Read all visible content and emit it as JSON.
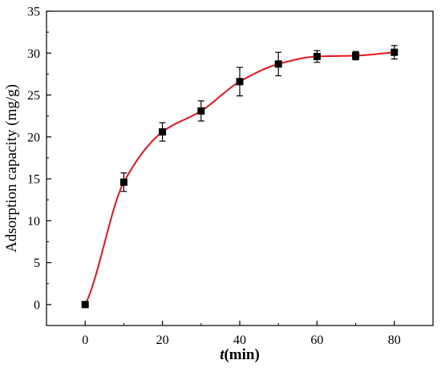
{
  "chart_data": {
    "type": "scatter",
    "title": "",
    "xlabel_italic": "t",
    "xlabel_rest": "(min)",
    "ylabel": "Adsorption capacity (mg/g)",
    "xlim": [
      -10,
      90
    ],
    "ylim": [
      -2.5,
      35
    ],
    "xticks": [
      0,
      20,
      40,
      60,
      80
    ],
    "yticks": [
      0,
      5,
      10,
      15,
      20,
      25,
      30,
      35
    ],
    "grid": false,
    "marker_color": "#000000",
    "fit_color": "#e8141b",
    "series": [
      {
        "x": [
          0,
          10,
          20,
          30,
          40,
          50,
          60,
          70,
          80
        ],
        "y": [
          0,
          14.6,
          20.6,
          23.1,
          26.6,
          28.7,
          29.6,
          29.7,
          30.1
        ],
        "err": [
          0,
          1.1,
          1.1,
          1.2,
          1.7,
          1.4,
          0.7,
          0.5,
          0.8
        ]
      }
    ]
  }
}
